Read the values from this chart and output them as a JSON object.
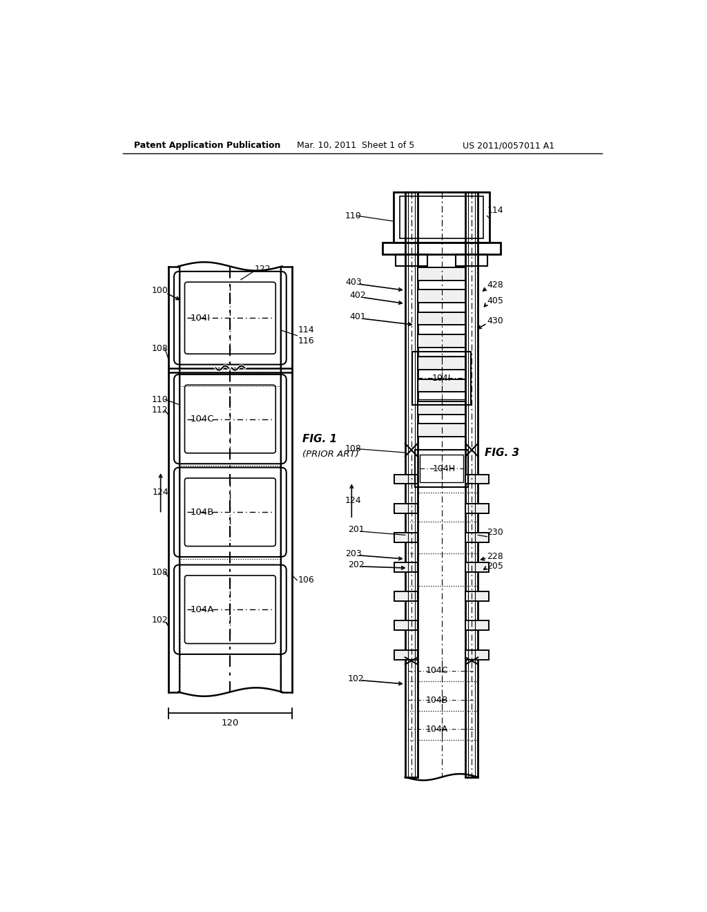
{
  "bg_color": "#ffffff",
  "header_left": "Patent Application Publication",
  "header_center": "Mar. 10, 2011  Sheet 1 of 5",
  "header_right": "US 2011/0057011 A1",
  "fig1_label": "FIG. 1",
  "fig1_sublabel": "(PRIOR ART)",
  "fig3_label": "FIG. 3",
  "line_color": "#000000",
  "text_color": "#000000"
}
